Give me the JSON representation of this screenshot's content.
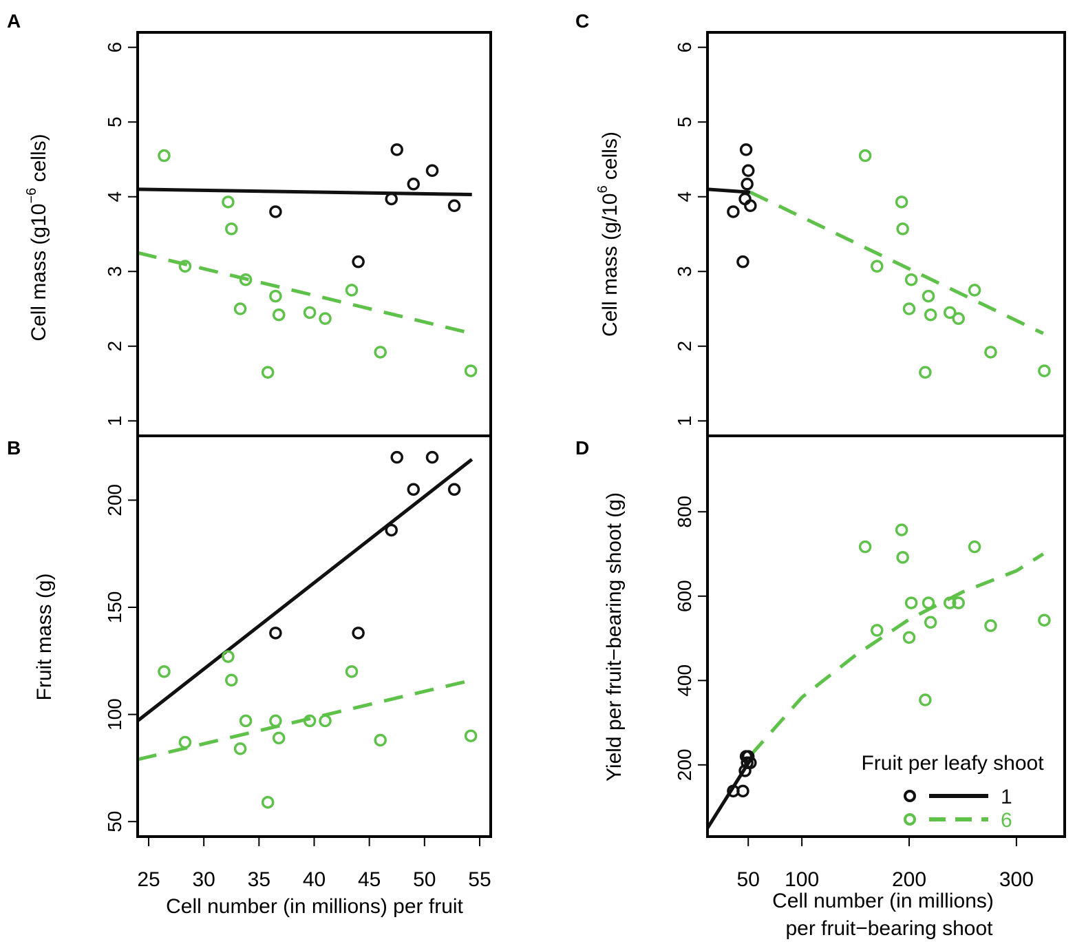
{
  "colors": {
    "group1": "#111111",
    "group6": "#5ec24a",
    "frame": "#000000"
  },
  "panels": {
    "A": {
      "letter": "A",
      "ylabel_main": "Cell mass  (g10",
      "ylabel_sup": "−6",
      "ylabel_end": "  cells)"
    },
    "B": {
      "letter": "B",
      "ylabel": "Fruit mass (g)"
    },
    "C": {
      "letter": "C",
      "ylabel_main": "Cell mass  (g/10",
      "ylabel_sup": "6",
      "ylabel_end": "  cells)"
    },
    "D": {
      "letter": "D",
      "ylabel": "Yield per fruit−bearing shoot (g)"
    }
  },
  "xlabels": {
    "left": "Cell number (in millions) per fruit",
    "right_line1": "Cell number (in millions)",
    "right_line2": "per fruit−bearing shoot"
  },
  "legend": {
    "title": "Fruit per leafy shoot",
    "entries": [
      {
        "label": "1",
        "color": "#111111",
        "dash": "solid"
      },
      {
        "label": "6",
        "color": "#5ec24a",
        "dash": "dashed"
      }
    ]
  },
  "chart_data": [
    {
      "id": "A",
      "type": "scatter",
      "xlabel": "",
      "ylabel": "Cell mass (g10^-6 cells)",
      "xlim": [
        24,
        56
      ],
      "ylim": [
        0.8,
        6.2
      ],
      "yticks": [
        1,
        2,
        3,
        4,
        5,
        6
      ],
      "series": [
        {
          "name": "1",
          "color": "#111111",
          "points": [
            [
              36.5,
              3.8
            ],
            [
              44,
              3.13
            ],
            [
              47,
              3.97
            ],
            [
              47.5,
              4.63
            ],
            [
              49,
              4.17
            ],
            [
              50.7,
              4.35
            ],
            [
              52.7,
              3.88
            ]
          ],
          "fit": [
            [
              24,
              4.1
            ],
            [
              54.3,
              4.03
            ]
          ],
          "fit_style": "solid"
        },
        {
          "name": "6",
          "color": "#5ec24a",
          "points": [
            [
              26.4,
              4.55
            ],
            [
              28.3,
              3.07
            ],
            [
              32.2,
              3.93
            ],
            [
              32.5,
              3.57
            ],
            [
              33.3,
              2.5
            ],
            [
              33.8,
              2.89
            ],
            [
              35.8,
              1.65
            ],
            [
              36.5,
              2.67
            ],
            [
              36.8,
              2.42
            ],
            [
              39.6,
              2.45
            ],
            [
              41,
              2.37
            ],
            [
              43.4,
              2.75
            ],
            [
              46,
              1.92
            ],
            [
              54.2,
              1.67
            ]
          ],
          "fit": [
            [
              24,
              3.25
            ],
            [
              54.3,
              2.17
            ]
          ],
          "fit_style": "dashed"
        }
      ]
    },
    {
      "id": "B",
      "type": "scatter",
      "xlabel": "Cell number (in millions) per fruit",
      "ylabel": "Fruit mass (g)",
      "xlim": [
        24,
        56
      ],
      "ylim": [
        43,
        230
      ],
      "xticks": [
        25,
        30,
        35,
        40,
        45,
        50,
        55
      ],
      "yticks": [
        50,
        100,
        150,
        200
      ],
      "series": [
        {
          "name": "1",
          "color": "#111111",
          "points": [
            [
              36.5,
              138
            ],
            [
              44,
              138
            ],
            [
              47,
              186
            ],
            [
              47.5,
              220
            ],
            [
              49,
              205
            ],
            [
              50.7,
              220
            ],
            [
              52.7,
              205
            ]
          ],
          "fit": [
            [
              24,
              97
            ],
            [
              54.3,
              219
            ]
          ],
          "fit_style": "solid"
        },
        {
          "name": "6",
          "color": "#5ec24a",
          "points": [
            [
              26.4,
              120
            ],
            [
              28.3,
              87
            ],
            [
              32.2,
              127
            ],
            [
              32.5,
              116
            ],
            [
              33.3,
              84
            ],
            [
              33.8,
              97
            ],
            [
              35.8,
              59
            ],
            [
              36.5,
              97
            ],
            [
              36.8,
              89
            ],
            [
              39.6,
              97
            ],
            [
              41,
              97
            ],
            [
              43.4,
              120
            ],
            [
              46,
              88
            ],
            [
              54.2,
              90
            ]
          ],
          "fit": [
            [
              24,
              79
            ],
            [
              54.3,
              116
            ]
          ],
          "fit_style": "dashed"
        }
      ]
    },
    {
      "id": "C",
      "type": "scatter",
      "xlabel": "",
      "ylabel": "Cell mass (g/10^6 cells)",
      "xlim": [
        12,
        345
      ],
      "ylim": [
        0.8,
        6.2
      ],
      "yticks": [
        1,
        2,
        3,
        4,
        5,
        6
      ],
      "series": [
        {
          "name": "1",
          "color": "#111111",
          "points": [
            [
              36,
              3.8
            ],
            [
              45,
              3.13
            ],
            [
              47,
              3.97
            ],
            [
              48,
              4.63
            ],
            [
              49,
              4.17
            ],
            [
              50,
              4.35
            ],
            [
              52,
              3.88
            ]
          ],
          "fit": [
            [
              12,
              4.1
            ],
            [
              52,
              4.06
            ]
          ],
          "fit_style": "solid"
        },
        {
          "name": "6",
          "color": "#5ec24a",
          "points": [
            [
              159,
              4.55
            ],
            [
              170,
              3.07
            ],
            [
              193,
              3.93
            ],
            [
              194,
              3.57
            ],
            [
              200,
              2.5
            ],
            [
              202,
              2.89
            ],
            [
              215,
              1.65
            ],
            [
              218,
              2.67
            ],
            [
              220,
              2.42
            ],
            [
              238,
              2.45
            ],
            [
              246,
              2.37
            ],
            [
              261,
              2.75
            ],
            [
              276,
              1.92
            ],
            [
              326,
              1.67
            ]
          ],
          "fit": [
            [
              52,
              4.06
            ],
            [
              325,
              2.17
            ]
          ],
          "fit_style": "dashed"
        }
      ]
    },
    {
      "id": "D",
      "type": "scatter",
      "xlabel": "Cell number (in millions) per fruit−bearing shoot",
      "ylabel": "Yield per fruit−bearing shoot (g)",
      "xlim": [
        12,
        345
      ],
      "ylim": [
        30,
        980
      ],
      "xticks": [
        50,
        100,
        200,
        300
      ],
      "yticks": [
        200,
        400,
        600,
        800
      ],
      "series": [
        {
          "name": "1",
          "color": "#111111",
          "points": [
            [
              36,
              138
            ],
            [
              45,
              138
            ],
            [
              47,
              186
            ],
            [
              48,
              220
            ],
            [
              49,
              205
            ],
            [
              50,
              220
            ],
            [
              52,
              205
            ]
          ],
          "fit": [
            [
              12,
              50
            ],
            [
              52,
              212
            ]
          ],
          "fit_style": "solid"
        },
        {
          "name": "6",
          "color": "#5ec24a",
          "points": [
            [
              159,
              717
            ],
            [
              170,
              519
            ],
            [
              193,
              757
            ],
            [
              194,
              692
            ],
            [
              200,
              502
            ],
            [
              202,
              584
            ],
            [
              215,
              354
            ],
            [
              218,
              584
            ],
            [
              220,
              538
            ],
            [
              238,
              584
            ],
            [
              246,
              584
            ],
            [
              261,
              717
            ],
            [
              276,
              530
            ],
            [
              326,
              543
            ]
          ],
          "fit": [
            [
              52,
              222
            ],
            [
              100,
              360
            ],
            [
              150,
              460
            ],
            [
              200,
              545
            ],
            [
              250,
              610
            ],
            [
              300,
              660
            ],
            [
              325,
              700
            ]
          ],
          "fit_style": "dashed"
        }
      ]
    }
  ]
}
